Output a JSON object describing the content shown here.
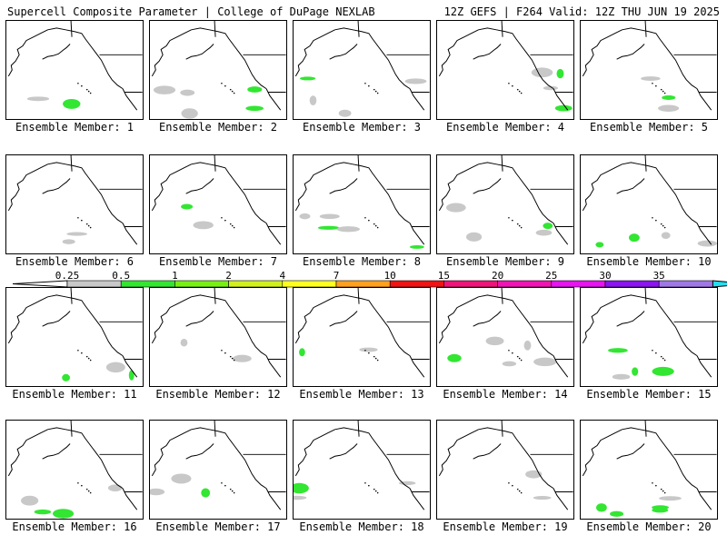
{
  "header": {
    "left_title": "Supercell Composite Parameter | College of DuPage NEXLAB",
    "right_title": "12Z GEFS | F264 Valid: 12Z THU JUN 19 2025"
  },
  "members": [
    {
      "label": "Ensemble Member: 1"
    },
    {
      "label": "Ensemble Member: 2"
    },
    {
      "label": "Ensemble Member: 3"
    },
    {
      "label": "Ensemble Member: 4"
    },
    {
      "label": "Ensemble Member: 5"
    },
    {
      "label": "Ensemble Member: 6"
    },
    {
      "label": "Ensemble Member: 7"
    },
    {
      "label": "Ensemble Member: 8"
    },
    {
      "label": "Ensemble Member: 9"
    },
    {
      "label": "Ensemble Member: 10"
    },
    {
      "label": "Ensemble Member: 11"
    },
    {
      "label": "Ensemble Member: 12"
    },
    {
      "label": "Ensemble Member: 13"
    },
    {
      "label": "Ensemble Member: 14"
    },
    {
      "label": "Ensemble Member: 15"
    },
    {
      "label": "Ensemble Member: 16"
    },
    {
      "label": "Ensemble Member: 17"
    },
    {
      "label": "Ensemble Member: 18"
    },
    {
      "label": "Ensemble Member: 19"
    },
    {
      "label": "Ensemble Member: 20"
    }
  ],
  "colorbar": {
    "ticks": [
      "0.25",
      "0.5",
      "1",
      "2",
      "4",
      "7",
      "10",
      "15",
      "20",
      "25",
      "30",
      "35"
    ],
    "colors": [
      "#c8c8c8",
      "#32e632",
      "#78f014",
      "#d2f01e",
      "#ffff1e",
      "#ffa01e",
      "#f01414",
      "#f0147a",
      "#f014b4",
      "#e614f0",
      "#8c14f0",
      "#a078e6",
      "#28dcf0"
    ]
  }
}
